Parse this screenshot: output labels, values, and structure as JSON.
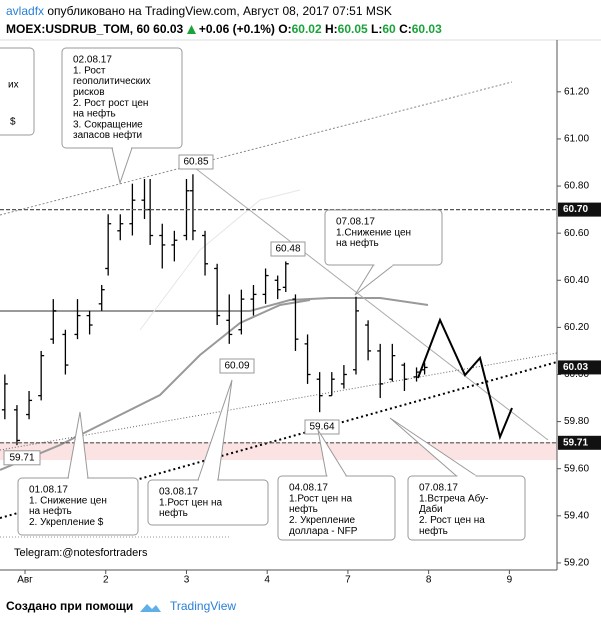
{
  "header": {
    "publisher": "avladfx",
    "published": "опубликовано на TradingView.com, Август 08, 2017 07:51 MSK",
    "symbol": "MOEX:USDRUB_TOM, 60",
    "last": 60.03,
    "change": "+0.06 (+0.1%)",
    "o_label": "O:",
    "open": 60.02,
    "h_label": "H:",
    "high": 60.05,
    "l_label": "L:",
    "low": 60.0,
    "c_label": "C:",
    "close": 60.03
  },
  "chart_data": {
    "type": "ohlc",
    "color": "#000000",
    "x": [
      -0.25,
      -0.1,
      0.05,
      0.2,
      0.35,
      0.5,
      0.65,
      0.8,
      0.95,
      1.03,
      1.18,
      1.33,
      1.48,
      1.55,
      1.7,
      1.85,
      2.0,
      2.08,
      2.23,
      2.38,
      2.53,
      2.68,
      2.83,
      2.98,
      3.13,
      3.23,
      3.35,
      3.5,
      3.65,
      3.8,
      3.95,
      4.1,
      4.25,
      4.4,
      4.55,
      4.7,
      4.85,
      4.95
    ],
    "open": [
      59.85,
      59.85,
      59.83,
      59.91,
      60.15,
      60.17,
      60.17,
      60.25,
      60.3,
      60.45,
      60.61,
      60.64,
      60.74,
      60.7,
      60.59,
      60.55,
      60.59,
      60.78,
      60.59,
      60.45,
      60.23,
      60.19,
      60.32,
      60.34,
      60.4,
      60.37,
      60.32,
      60.13,
      59.98,
      59.91,
      59.96,
      60.02,
      60.21,
      60.1,
      59.98,
      60.04,
      59.99,
      60.02
    ],
    "high": [
      60.0,
      59.87,
      59.93,
      60.1,
      60.32,
      60.19,
      60.32,
      60.27,
      60.38,
      60.68,
      60.68,
      60.81,
      60.83,
      60.83,
      60.64,
      60.61,
      60.83,
      60.85,
      60.61,
      60.47,
      60.34,
      60.36,
      60.38,
      60.45,
      60.42,
      60.48,
      60.34,
      60.17,
      60.01,
      60.01,
      60.04,
      60.33,
      60.23,
      60.13,
      60.13,
      60.05,
      60.03,
      60.05
    ],
    "low": [
      59.81,
      59.7,
      59.81,
      59.89,
      60.13,
      60.0,
      60.15,
      60.17,
      60.27,
      60.42,
      60.57,
      60.59,
      60.66,
      60.55,
      60.45,
      60.48,
      60.57,
      60.57,
      60.42,
      60.21,
      60.13,
      60.17,
      60.25,
      60.3,
      60.32,
      60.35,
      60.1,
      59.96,
      59.84,
      59.91,
      59.94,
      60.0,
      60.06,
      59.9,
      59.97,
      59.93,
      59.97,
      60.0
    ],
    "close": [
      59.96,
      59.72,
      59.89,
      60.08,
      60.27,
      60.04,
      60.25,
      60.21,
      60.36,
      60.64,
      60.64,
      60.74,
      60.7,
      60.59,
      60.55,
      60.57,
      60.78,
      60.61,
      60.47,
      60.25,
      60.17,
      60.32,
      60.34,
      60.42,
      60.36,
      60.47,
      60.15,
      60.0,
      59.91,
      59.98,
      60.0,
      60.27,
      60.1,
      59.96,
      60.08,
      59.98,
      60.01,
      60.03
    ],
    "xlim": [
      -0.31,
      6.59
    ],
    "xticks": [
      {
        "value": 0,
        "label": "Авг"
      },
      {
        "value": 1,
        "label": "2"
      },
      {
        "value": 2,
        "label": "3"
      },
      {
        "value": 3,
        "label": "4"
      },
      {
        "value": 4,
        "label": "7"
      },
      {
        "value": 5,
        "label": "8"
      },
      {
        "value": 6,
        "label": "9"
      }
    ],
    "ylim": [
      59.17,
      61.42
    ],
    "yticks": [
      {
        "value": 59.2,
        "label": "59.20"
      },
      {
        "value": 59.4,
        "label": "59.40"
      },
      {
        "value": 59.6,
        "label": "59.60"
      },
      {
        "value": 59.8,
        "label": "59.80"
      },
      {
        "value": 60.0,
        "label": "60.00"
      },
      {
        "value": 60.2,
        "label": "60.20"
      },
      {
        "value": 60.4,
        "label": "60.40"
      },
      {
        "value": 60.6,
        "label": "60.60"
      },
      {
        "value": 60.8,
        "label": "60.80"
      },
      {
        "value": 61.0,
        "label": "61.00"
      },
      {
        "value": 61.2,
        "label": "61.20"
      }
    ],
    "levels": [
      {
        "value": 60.7,
        "label": "60.70"
      },
      59.71
    ],
    "last_price": 60.03,
    "price_labels": [
      60.85,
      60.48,
      60.09,
      59.64
    ],
    "callouts": [
      {
        "lines": [
          "их",
          "$"
        ]
      },
      {
        "lines": [
          "02.08.17",
          "1. Рост",
          "геополитических",
          "рисков",
          "2. Рост рост цен",
          "на нефть",
          "3. Сокращение",
          "запасов нефти"
        ]
      },
      {
        "lines": [
          "07.08.17",
          "1.Снижение цен",
          "на нефть"
        ]
      },
      {
        "lines": [
          "01.08.17",
          "1. Снижение цен",
          "на нефть",
          "2. Укрепление $"
        ]
      },
      {
        "lines": [
          "03.08.17",
          "1.Рост цен на",
          "нефть"
        ]
      },
      {
        "lines": [
          "04.08.17",
          "1.Рост цен на",
          "нефть",
          "2. Укрепление",
          "доллара - NFP"
        ]
      },
      {
        "lines": [
          "07.08.17",
          "1.Встреча Абу-",
          "Даби",
          "2. Рост цен на",
          "нефть"
        ]
      }
    ],
    "note": "Telegram:@notesfortraders"
  },
  "footer": {
    "made_with": "Создано при помощи",
    "brand": "TradingView"
  }
}
